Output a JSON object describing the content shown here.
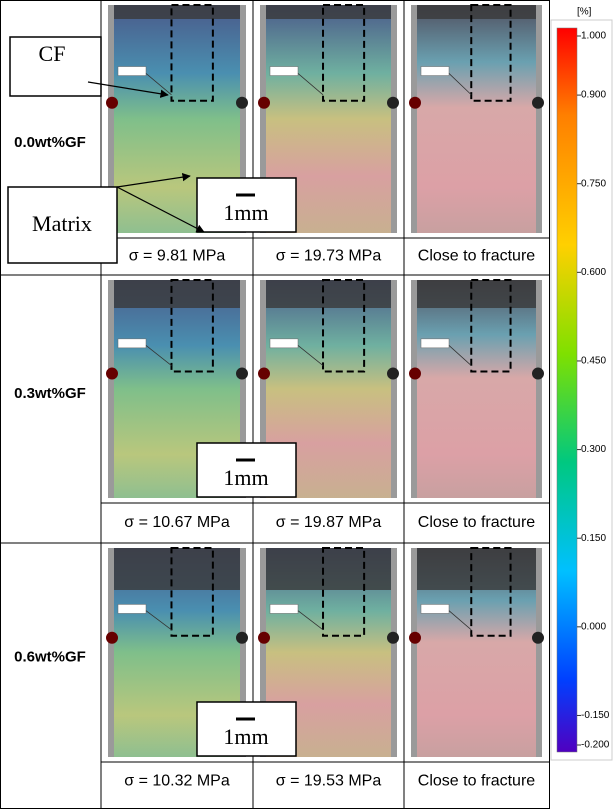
{
  "rows": [
    {
      "label": "0.0wt%GF",
      "captions": [
        "σ = 9.81 MPa",
        "σ = 19.73 MPa",
        "Close to fracture"
      ],
      "scale_bar": "1mm"
    },
    {
      "label": "0.3wt%GF",
      "captions": [
        "σ = 10.67 MPa",
        "σ = 19.87 MPa",
        "Close to fracture"
      ],
      "scale_bar": "1mm"
    },
    {
      "label": "0.6wt%GF",
      "captions": [
        "σ = 10.32 MPa",
        "σ = 19.53 MPa",
        "Close to fracture"
      ],
      "scale_bar": "1mm"
    }
  ],
  "annotations": {
    "cf": "CF",
    "matrix": "Matrix"
  },
  "colorbar": {
    "unit": "[%]",
    "ticks": [
      {
        "value": 1.0,
        "label": "1.000"
      },
      {
        "value": 0.9,
        "label": "0.900"
      },
      {
        "value": 0.75,
        "label": "0.750"
      },
      {
        "value": 0.6,
        "label": "0.600"
      },
      {
        "value": 0.45,
        "label": "0.450"
      },
      {
        "value": 0.3,
        "label": "0.300"
      },
      {
        "value": 0.15,
        "label": "0.150"
      },
      {
        "value": 0.0,
        "label": "0.000"
      },
      {
        "value": -0.15,
        "label": "-0.150"
      },
      {
        "value": -0.2,
        "label": "-0.200"
      }
    ]
  }
}
